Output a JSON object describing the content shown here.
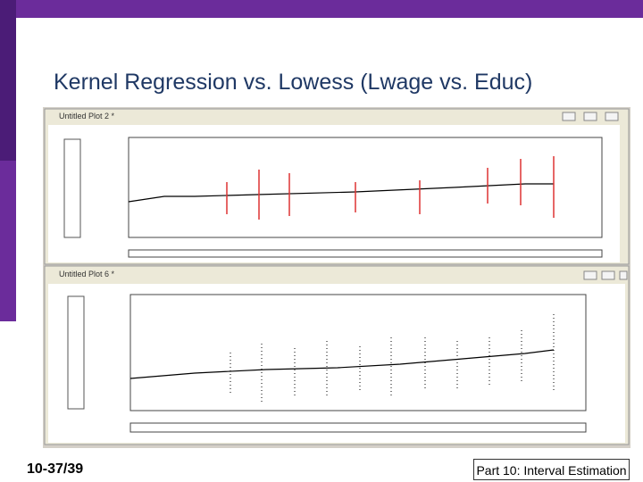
{
  "slide": {
    "title": "Kernel Regression vs. Lowess (Lwage vs. Educ)",
    "windows": [
      {
        "title": "Untitled Plot 2 *"
      },
      {
        "title": "Untitled Plot 6 *"
      }
    ],
    "footer": {
      "page": "10-37/39",
      "section": "Part 10: Interval Estimation"
    }
  }
}
